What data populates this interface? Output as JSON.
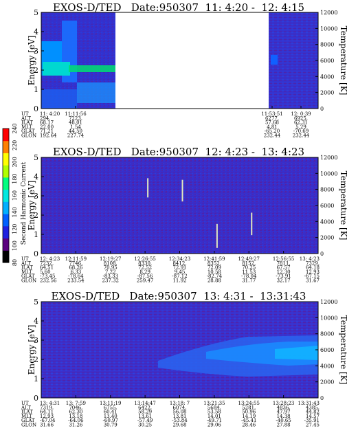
{
  "panels": [
    {
      "title": "EXOS-D/TED   Date:950307  11: 4:20 -  12: 4:15",
      "energy_label": "Energy [eV]",
      "temperature_label": "Temperature [K]",
      "energy_ticks": [
        "0",
        "1",
        "2",
        "3",
        "4",
        "5"
      ],
      "temperature_ticks": [
        "0",
        "2000",
        "4000",
        "6000",
        "8000",
        "10000",
        "12000"
      ],
      "orbit_labels": [
        "UT",
        "ALT",
        "ILAT",
        "MLT",
        "GLAT",
        "GLON"
      ],
      "columns": [
        {
          "ut": "11: 4:20",
          "alt": "294.",
          "ilat": "68.17",
          "mlt": "22.00",
          "glat": "71.21",
          "glon": "192.64"
        },
        {
          "ut": "11:11:56",
          "alt": "7223.",
          "ilat": "48.01",
          "mlt": "1.54",
          "glat": "44.50",
          "glon": "227.74"
        },
        {
          "ut": "11:53:51",
          "alt": "6277.",
          "ilat": "57.68",
          "mlt": "4.81",
          "glat": "-65.20",
          "glon": "232.44"
        },
        {
          "ut": "12: 0:39",
          "alt": "6925.",
          "ilat": "62.31",
          "mlt": "5.29",
          "glat": "-70.69",
          "glon": "232.44"
        }
      ]
    },
    {
      "title": "EXOS-D/TED   Date:950307  12: 4:23 -  13: 4:23",
      "energy_label": "Energy [eV]",
      "temperature_label": "Temperature [K]",
      "energy_ticks": [
        "0",
        "1",
        "2",
        "3",
        "4",
        "5"
      ],
      "temperature_ticks": [
        "0",
        "2000",
        "4000",
        "6000",
        "8000",
        "10000",
        "12000"
      ],
      "orbit_labels": [
        "UT",
        "ALT",
        "ILAT",
        "MLT",
        "GLAT",
        "GLON"
      ],
      "columns": [
        {
          "ut": "12: 4:23",
          "alt": "7232.",
          "ilat": "64.51",
          "mlt": "5.60",
          "glat": "-73.45",
          "glon": "232.56"
        },
        {
          "ut": "12:11:59",
          "alt": "7746.",
          "ilat": "68.26",
          "mlt": "6.33",
          "glat": "-78.64",
          "glon": "233.54"
        },
        {
          "ut": "12:19:27",
          "alt": "8108.",
          "ilat": "70.95",
          "mlt": "7.22",
          "glat": "-83.33",
          "glon": "237.32"
        },
        {
          "ut": "12:26:55",
          "alt": "8330.",
          "ilat": "72.52",
          "mlt": "8.29",
          "glat": "-87.56",
          "glon": "259.47"
        },
        {
          "ut": "12:34:23",
          "alt": "8412.",
          "ilat": "72.91",
          "mlt": "9.45",
          "glat": "-87.12",
          "glon": "11.92"
        },
        {
          "ut": "12:41:59",
          "alt": "8352.",
          "ilat": "72.09",
          "mlt": "10.58",
          "glat": "-82.74",
          "glon": "28.88"
        },
        {
          "ut": "12:49:27",
          "alt": "8152.",
          "ilat": "70.25",
          "mlt": "11.53",
          "glat": "-78.04",
          "glon": "31.77"
        },
        {
          "ut": "12:56:55",
          "alt": "7811.",
          "ilat": "67.57",
          "mlt": "12.30",
          "glat": "-73.91",
          "glon": "32.17"
        },
        {
          "ut": "13: 4:23",
          "alt": "7329.",
          "ilat": "64.18",
          "mlt": "12.93",
          "glat": "-67.15",
          "glon": "31.67"
        }
      ]
    },
    {
      "title": "EXOS-D/TED   Date:950307  13: 4:31 -  13:31:43",
      "energy_label": "Energy [eV]",
      "temperature_label": "Temperature [K]",
      "energy_ticks": [
        "0",
        "1",
        "2",
        "3",
        "4",
        "5"
      ],
      "temperature_ticks": [
        "0",
        "2000",
        "4000",
        "6000",
        "8000",
        "10000",
        "12000"
      ],
      "orbit_labels": [
        "UT",
        "ALT",
        "ILAT",
        "MLT",
        "GLAT",
        "GLON"
      ],
      "columns": [
        {
          "ut": "13: 4:31",
          "alt": "7319.",
          "ilat": "64.11",
          "mlt": "12.93",
          "glat": "-67.04",
          "glon": "31.66"
        },
        {
          "ut": "13: 7:59",
          "alt": "7046.",
          "ilat": "62.30",
          "mlt": "13.18",
          "glat": "-64.06",
          "glon": "31.26"
        },
        {
          "ut": "13:11:19",
          "alt": "6755.",
          "ilat": "60.41",
          "mlt": "13.40",
          "glat": "-60.97",
          "glon": "30.79"
        },
        {
          "ut": "13:14:47",
          "alt": "6422.",
          "ilat": "58.29",
          "mlt": "13.61",
          "glat": "-57.49",
          "glon": "30.25"
        },
        {
          "ut": "13:18: 7",
          "alt": "6074.",
          "ilat": "56.08",
          "mlt": "13.81",
          "glat": "-53.84",
          "glon": "29.68"
        },
        {
          "ut": "13:21:35",
          "alt": "5684.",
          "ilat": "53.58",
          "mlt": "14.01",
          "glat": "-49.71",
          "glon": "29.06"
        },
        {
          "ut": "13:24:55",
          "alt": "5281.",
          "ilat": "50.96",
          "mlt": "14.19",
          "glat": "-45.41",
          "glon": "28.46"
        },
        {
          "ut": "13:28:23",
          "alt": "4836.",
          "ilat": "47.97",
          "mlt": "14.38",
          "glat": "-40.65",
          "glon": "27.88"
        },
        {
          "ut": "13:31:43",
          "alt": "4385.",
          "ilat": "44.82",
          "mlt": "14.57",
          "glat": "-35.91",
          "glon": "27.45"
        }
      ]
    }
  ],
  "colorbar": {
    "label": "Second Harmonic Current",
    "ticks": [
      "80",
      "100",
      "120",
      "140",
      "160",
      "180",
      "200",
      "220",
      "240"
    ],
    "colors": [
      "#000000",
      "#5a007f",
      "#2020e0",
      "#0060ff",
      "#00b0ff",
      "#00e8e0",
      "#00ff80",
      "#b0ff00",
      "#ffff00",
      "#ff8000",
      "#ff0000"
    ]
  },
  "chart_data": [
    {
      "type": "heatmap",
      "title": "EXOS-D/TED   Date:950307  11: 4:20 -  12: 4:15",
      "ylabel": "Energy [eV]",
      "ylim": [
        0,
        5
      ],
      "y2label": "Temperature [K]",
      "y2lim": [
        0,
        12000
      ],
      "x": [
        "11: 4:20",
        "11:11:56",
        "11:53:51",
        "12: 0:39"
      ],
      "colorbar_label": "Second Harmonic Current",
      "colorbar_range": [
        80,
        240
      ],
      "data_gaps": [
        [
          "11:11:56",
          "11:53:51"
        ]
      ]
    },
    {
      "type": "heatmap",
      "title": "EXOS-D/TED   Date:950307  12: 4:23 -  13: 4:23",
      "ylabel": "Energy [eV]",
      "ylim": [
        0,
        5
      ],
      "y2label": "Temperature [K]",
      "y2lim": [
        0,
        12000
      ],
      "x": [
        "12: 4:23",
        "12:11:59",
        "12:19:27",
        "12:26:55",
        "12:34:23",
        "12:41:59",
        "12:49:27",
        "12:56:55",
        "13: 4:23"
      ],
      "colorbar_label": "Second Harmonic Current",
      "colorbar_range": [
        80,
        240
      ],
      "temperature_points": [
        {
          "ut": "12:26:55",
          "temperature": [
            7000,
            9400
          ]
        },
        {
          "ut": "12:34:23",
          "temperature": [
            6500,
            9200
          ]
        },
        {
          "ut": "12:41:59",
          "temperature": [
            700,
            3700
          ]
        },
        {
          "ut": "12:49:27",
          "temperature": [
            2300,
            5100
          ]
        }
      ]
    },
    {
      "type": "heatmap",
      "title": "EXOS-D/TED   Date:950307  13: 4:31 -  13:31:43",
      "ylabel": "Energy [eV]",
      "ylim": [
        0,
        5
      ],
      "y2label": "Temperature [K]",
      "y2lim": [
        0,
        12000
      ],
      "x": [
        "13: 4:31",
        "13: 7:59",
        "13:11:19",
        "13:14:47",
        "13:18: 7",
        "13:21:35",
        "13:24:55",
        "13:28:23",
        "13:31:43"
      ],
      "colorbar_label": "Second Harmonic Current",
      "colorbar_range": [
        80,
        240
      ]
    }
  ]
}
